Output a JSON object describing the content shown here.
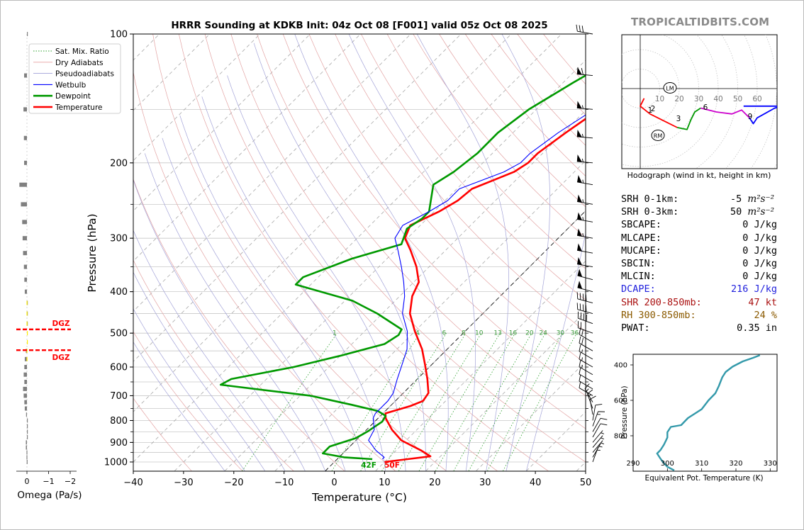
{
  "page": {
    "brand": "TROPICALTIDBITS.COM",
    "title": "HRRR Sounding at KDKB Init: 04z Oct 08 [F001] valid 05z Oct 08 2025"
  },
  "chart_data": [
    {
      "type": "line",
      "chart": "skew-t",
      "title": "HRRR Sounding at KDKB Init: 04z Oct 08 [F001] valid 05z Oct 08 2025",
      "xlabel": "Temperature (°C)",
      "ylabel": "Pressure (hPa)",
      "xlim": [
        -40,
        50
      ],
      "ylim": [
        1050,
        100
      ],
      "yscale": "log",
      "xticks": [
        -40,
        -30,
        -20,
        -10,
        0,
        10,
        20,
        30,
        40,
        50
      ],
      "yticks": [
        100,
        200,
        300,
        400,
        500,
        600,
        700,
        800,
        900,
        1000
      ],
      "legend_position": "upper-left",
      "legend": [
        {
          "name": "Sat. Mix. Ratio",
          "color": "#2ca02c",
          "style": "dotted"
        },
        {
          "name": "Dry Adiabats",
          "color": "#e8a0a0",
          "style": "solid"
        },
        {
          "name": "Pseudoadiabats",
          "color": "#a0a0d8",
          "style": "solid"
        },
        {
          "name": "Wetbulb",
          "color": "#0000ff",
          "style": "solid"
        },
        {
          "name": "Dewpoint",
          "color": "#009900",
          "style": "solid"
        },
        {
          "name": "Temperature",
          "color": "#ff0000",
          "style": "solid"
        }
      ],
      "mixing_ratio_labels": [
        "1",
        "4",
        "6",
        "8",
        "10",
        "13",
        "16",
        "20",
        "24",
        "30",
        "36"
      ],
      "surface_labels": {
        "dewpoint": "42F",
        "temperature": "50F"
      },
      "series": [
        {
          "name": "Temperature",
          "color": "#ff0000",
          "points": [
            [
              10.0,
              1000
            ],
            [
              18.0,
              970
            ],
            [
              15.0,
              940
            ],
            [
              9.0,
              890
            ],
            [
              5.0,
              840
            ],
            [
              1.5,
              790
            ],
            [
              0.5,
              770
            ],
            [
              4.0,
              740
            ],
            [
              5.5,
              720
            ],
            [
              5.0,
              690
            ],
            [
              2.0,
              640
            ],
            [
              -1.5,
              590
            ],
            [
              -5.0,
              545
            ],
            [
              -10.0,
              495
            ],
            [
              -14.5,
              450
            ],
            [
              -17.5,
              410
            ],
            [
              -19.0,
              380
            ],
            [
              -22.5,
              350
            ],
            [
              -27.0,
              320
            ],
            [
              -30.5,
              300
            ],
            [
              -32.0,
              280
            ],
            [
              -29.0,
              260
            ],
            [
              -27.5,
              245
            ],
            [
              -27.0,
              230
            ],
            [
              -22.0,
              210
            ],
            [
              -21.0,
              200
            ],
            [
              -21.0,
              190
            ],
            [
              -19.5,
              170
            ],
            [
              -17.5,
              150
            ],
            [
              -14.5,
              130
            ],
            [
              -11.5,
              115
            ],
            [
              -9.0,
              104
            ],
            [
              -7.5,
              100
            ]
          ]
        },
        {
          "name": "Dewpoint",
          "color": "#009900",
          "points": [
            [
              7.0,
              985
            ],
            [
              1.0,
              975
            ],
            [
              -4.0,
              955
            ],
            [
              -4.0,
              920
            ],
            [
              -0.5,
              880
            ],
            [
              0.5,
              850
            ],
            [
              1.5,
              805
            ],
            [
              1.0,
              780
            ],
            [
              -1.5,
              760
            ],
            [
              -8.0,
              735
            ],
            [
              -18.0,
              700
            ],
            [
              -38.0,
              660
            ],
            [
              -37.0,
              640
            ],
            [
              -27.0,
              600
            ],
            [
              -20.0,
              565
            ],
            [
              -13.5,
              530
            ],
            [
              -12.5,
              505
            ],
            [
              -13.0,
              490
            ],
            [
              -21.0,
              450
            ],
            [
              -28.5,
              420
            ],
            [
              -43.0,
              385
            ],
            [
              -43.0,
              370
            ],
            [
              -37.0,
              335
            ],
            [
              -30.0,
              310
            ],
            [
              -32.0,
              285
            ],
            [
              -31.0,
              270
            ],
            [
              -31.0,
              260
            ],
            [
              -35.5,
              225
            ],
            [
              -34.0,
              210
            ],
            [
              -33.0,
              190
            ],
            [
              -33.0,
              170
            ],
            [
              -31.5,
              150
            ],
            [
              -28.0,
              130
            ],
            [
              -24.0,
              112
            ],
            [
              -19.5,
              100
            ]
          ]
        },
        {
          "name": "Wetbulb",
          "color": "#0000ff",
          "points": [
            [
              9.0,
              985
            ],
            [
              9.0,
              975
            ],
            [
              6.0,
              940
            ],
            [
              2.5,
              890
            ],
            [
              1.5,
              840
            ],
            [
              -1.0,
              790
            ],
            [
              -1.5,
              770
            ],
            [
              -1.5,
              720
            ],
            [
              -2.0,
              690
            ],
            [
              -4.0,
              640
            ],
            [
              -6.0,
              590
            ],
            [
              -8.0,
              545
            ],
            [
              -11.5,
              495
            ],
            [
              -16.0,
              450
            ],
            [
              -19.0,
              410
            ],
            [
              -22.0,
              380
            ],
            [
              -25.5,
              350
            ],
            [
              -29.5,
              320
            ],
            [
              -32.5,
              300
            ],
            [
              -33.5,
              280
            ],
            [
              -31.0,
              260
            ],
            [
              -29.5,
              245
            ],
            [
              -29.5,
              230
            ],
            [
              -24.0,
              210
            ],
            [
              -22.5,
              200
            ],
            [
              -22.5,
              190
            ],
            [
              -21.0,
              170
            ],
            [
              -18.5,
              150
            ],
            [
              -15.5,
              130
            ],
            [
              -12.0,
              115
            ],
            [
              -9.0,
              104
            ],
            [
              -7.5,
              100
            ]
          ]
        }
      ]
    },
    {
      "type": "line",
      "chart": "hodograph",
      "title": "Hodograph (wind in kt, height in km)",
      "ring_labels": [
        "10",
        "20",
        "30",
        "40",
        "50",
        "60"
      ],
      "height_labels": [
        "1",
        "2",
        "3",
        "6",
        "9"
      ],
      "motion_labels": [
        "LM",
        "RM"
      ],
      "segments": [
        {
          "color": "#ff0000",
          "points": [
            [
              2,
              -5
            ],
            [
              0,
              -9
            ],
            [
              5,
              -13
            ],
            [
              13,
              -17
            ],
            [
              19,
              -20
            ]
          ]
        },
        {
          "color": "#009900",
          "points": [
            [
              19,
              -20
            ],
            [
              24,
              -21
            ],
            [
              26,
              -16
            ],
            [
              28,
              -12
            ],
            [
              31,
              -10
            ]
          ]
        },
        {
          "color": "#cc00cc",
          "points": [
            [
              31,
              -10
            ],
            [
              39,
              -12
            ],
            [
              47,
              -13
            ],
            [
              52,
              -11
            ],
            [
              56,
              -15
            ]
          ]
        },
        {
          "color": "#0000ff",
          "points": [
            [
              56,
              -15
            ],
            [
              58,
              -18
            ],
            [
              60,
              -15
            ],
            [
              69,
              -10
            ],
            [
              73,
              -9
            ],
            [
              53,
              -9
            ]
          ]
        }
      ]
    },
    {
      "type": "line",
      "chart": "theta-e",
      "xlabel": "Equivalent Pot. Temperature (K)",
      "ylabel": "Pressure (hPa)",
      "xlim": [
        290,
        332
      ],
      "ylim": [
        1000,
        340
      ],
      "xticks": [
        290,
        300,
        310,
        320,
        330
      ],
      "yticks": [
        400,
        600,
        800
      ],
      "color": "#3399aa",
      "points": [
        [
          302,
          995
        ],
        [
          300,
          975
        ],
        [
          299,
          955
        ],
        [
          298,
          930
        ],
        [
          297,
          900
        ],
        [
          298,
          880
        ],
        [
          299,
          850
        ],
        [
          300,
          810
        ],
        [
          300,
          780
        ],
        [
          301,
          750
        ],
        [
          304,
          740
        ],
        [
          306,
          700
        ],
        [
          310,
          650
        ],
        [
          312,
          600
        ],
        [
          314,
          560
        ],
        [
          315,
          520
        ],
        [
          316,
          470
        ],
        [
          317,
          440
        ],
        [
          319,
          410
        ],
        [
          322,
          380
        ],
        [
          325,
          360
        ],
        [
          327,
          345
        ]
      ]
    },
    {
      "type": "bar",
      "chart": "omega",
      "xlabel": "Omega (Pa/s)",
      "xticks": [
        "0",
        "−1",
        "−2"
      ],
      "xlim": [
        0.5,
        -2.0
      ],
      "dgz_label": "DGZ",
      "dgz_pressures": [
        490,
        548
      ],
      "levels": [
        100,
        125,
        150,
        175,
        200,
        225,
        250,
        275,
        300,
        325,
        350,
        375,
        400,
        425,
        450,
        475,
        500,
        525,
        550,
        575,
        600,
        625,
        650,
        675,
        700,
        725,
        750,
        775,
        800,
        825,
        850,
        875,
        900,
        925,
        950,
        975,
        1000
      ],
      "values": [
        -0.02,
        0.13,
        0.16,
        0.14,
        0.13,
        0.35,
        0.28,
        0.22,
        0.2,
        0.18,
        0.14,
        0.12,
        0.1,
        -0.01,
        -0.02,
        -0.02,
        0.0,
        0.0,
        0.05,
        0.1,
        0.12,
        0.15,
        0.12,
        0.18,
        0.15,
        0.12,
        0.1,
        0.04,
        -0.01,
        -0.02,
        0.0,
        -0.01,
        0.05,
        0.05,
        0.02,
        0.02,
        0.01
      ],
      "colors": {
        "bar": "#808080",
        "dgz_bar": "#ffee00",
        "dgz_line": "#ff0000"
      }
    }
  ],
  "winds": {
    "pressures": [
      100,
      125,
      150,
      175,
      200,
      225,
      250,
      275,
      300,
      325,
      350,
      375,
      400,
      425,
      450,
      475,
      500,
      525,
      550,
      575,
      600,
      625,
      650,
      675,
      700,
      725,
      750,
      775,
      800,
      825,
      850,
      875,
      900,
      925,
      950,
      975,
      1000
    ],
    "speeds_kt": [
      30,
      60,
      55,
      55,
      55,
      55,
      55,
      55,
      55,
      50,
      50,
      50,
      50,
      40,
      40,
      40,
      20,
      20,
      20,
      15,
      15,
      15,
      10,
      10,
      10,
      15,
      15,
      10,
      10,
      15,
      10,
      10,
      5,
      5,
      5,
      5,
      5
    ],
    "dirs_deg": [
      280,
      275,
      275,
      275,
      275,
      280,
      280,
      280,
      280,
      280,
      280,
      285,
      285,
      285,
      285,
      290,
      290,
      300,
      300,
      300,
      300,
      300,
      300,
      300,
      300,
      330,
      340,
      350,
      10,
      20,
      30,
      30,
      40,
      40,
      40,
      30,
      20
    ]
  },
  "stats": [
    {
      "key": "SRH 0-1km:",
      "value": "-5",
      "unit": "m²s⁻²",
      "color": "#000000"
    },
    {
      "key": "SRH 0-3km:",
      "value": "50",
      "unit": "m²s⁻²",
      "color": "#000000"
    },
    {
      "key": "SBCAPE:",
      "value": "0 J/kg",
      "color": "#000000"
    },
    {
      "key": "MLCAPE:",
      "value": "0 J/kg",
      "color": "#000000"
    },
    {
      "key": "MUCAPE:",
      "value": "0 J/kg",
      "color": "#000000"
    },
    {
      "key": "SBCIN:",
      "value": "0 J/kg",
      "color": "#000000"
    },
    {
      "key": "MLCIN:",
      "value": "0 J/kg",
      "color": "#000000"
    },
    {
      "key": "DCAPE:",
      "value": "216 J/kg",
      "color": "#2222dd"
    },
    {
      "key": "SHR 200-850mb:",
      "value": "47 kt",
      "color": "#aa1111"
    },
    {
      "key": "RH 300-850mb:",
      "value": "24 %",
      "color": "#8b5a00"
    },
    {
      "key": "PWAT:",
      "value": "0.35 in",
      "color": "#000000"
    }
  ]
}
